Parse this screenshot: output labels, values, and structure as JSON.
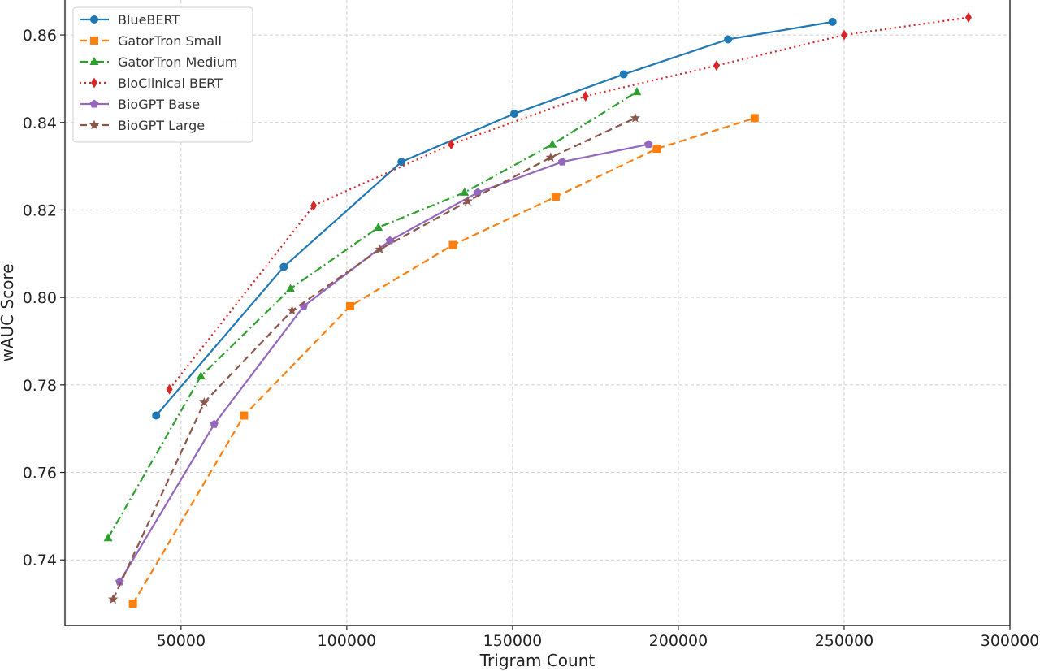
{
  "chart_data": {
    "type": "line",
    "title": "",
    "xlabel": "Trigram Count",
    "ylabel": "wAUC Score",
    "xlim": [
      15000,
      300000
    ],
    "ylim": [
      0.725,
      0.868
    ],
    "x_ticks": [
      50000,
      100000,
      150000,
      200000,
      250000,
      300000
    ],
    "x_tick_labels": [
      "50000",
      "100000",
      "150000",
      "200000",
      "250000",
      "300000"
    ],
    "y_ticks": [
      0.74,
      0.76,
      0.78,
      0.8,
      0.82,
      0.84,
      0.86
    ],
    "y_tick_labels": [
      "0.74",
      "0.76",
      "0.78",
      "0.80",
      "0.82",
      "0.84",
      "0.86"
    ],
    "grid": true,
    "legend_position": "top-left",
    "series": [
      {
        "name": "BlueBERT",
        "color": "#1f77b4",
        "marker": "circle",
        "line_style": "solid",
        "x": [
          42500,
          81000,
          116500,
          150500,
          183500,
          215000,
          246500
        ],
        "y": [
          0.773,
          0.807,
          0.831,
          0.842,
          0.851,
          0.859,
          0.863
        ]
      },
      {
        "name": "GatorTron Small",
        "color": "#ff7f0e",
        "marker": "square",
        "line_style": "dashed",
        "x": [
          35500,
          69000,
          101000,
          132000,
          163000,
          193500,
          223000
        ],
        "y": [
          0.73,
          0.773,
          0.798,
          0.812,
          0.823,
          0.834,
          0.841
        ]
      },
      {
        "name": "GatorTron Medium",
        "color": "#2ca02c",
        "marker": "triangle",
        "line_style": "dashdot",
        "x": [
          28000,
          56000,
          83000,
          109500,
          135500,
          162000,
          187500
        ],
        "y": [
          0.745,
          0.782,
          0.802,
          0.816,
          0.824,
          0.835,
          0.847
        ]
      },
      {
        "name": "BioClinical BERT",
        "color": "#d62728",
        "marker": "diamond",
        "line_style": "dotted",
        "x": [
          46500,
          90000,
          131500,
          172000,
          211500,
          250000,
          287500
        ],
        "y": [
          0.779,
          0.821,
          0.835,
          0.846,
          0.853,
          0.86,
          0.864
        ]
      },
      {
        "name": "BioGPT Base",
        "color": "#9467bd",
        "marker": "pentagon",
        "line_style": "solid",
        "x": [
          31500,
          60000,
          87000,
          113000,
          139500,
          165000,
          191000
        ],
        "y": [
          0.735,
          0.771,
          0.798,
          0.813,
          0.824,
          0.831,
          0.835
        ]
      },
      {
        "name": "BioGPT Large",
        "color": "#8c564b",
        "marker": "star",
        "line_style": "dashed",
        "x": [
          29500,
          57000,
          83500,
          110000,
          136500,
          161500,
          187000
        ],
        "y": [
          0.731,
          0.776,
          0.797,
          0.811,
          0.822,
          0.832,
          0.841
        ]
      }
    ]
  }
}
